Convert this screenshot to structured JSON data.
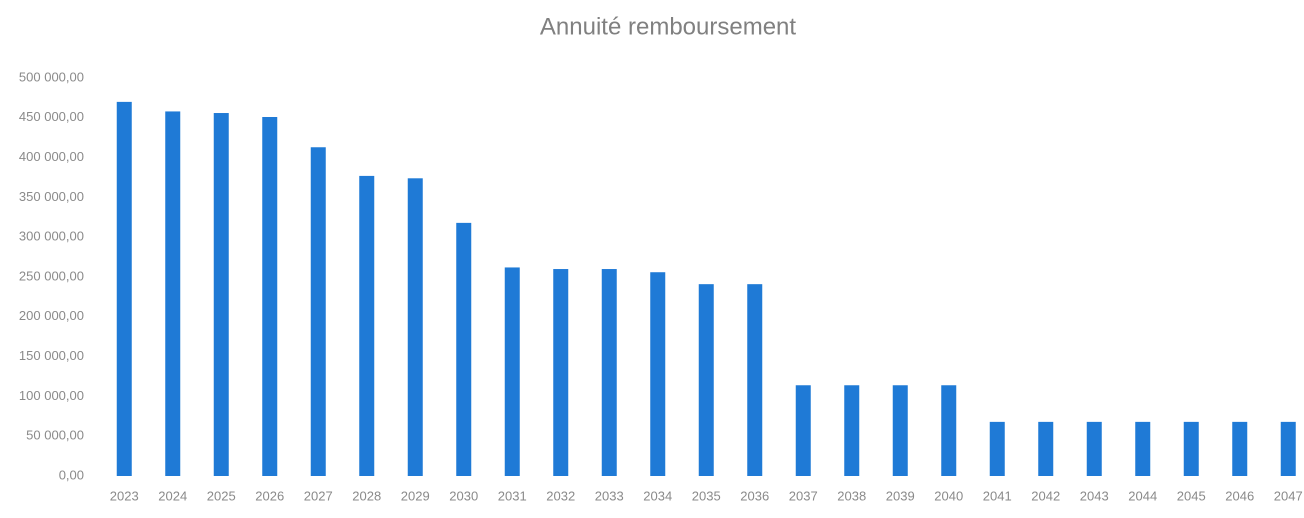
{
  "chart_data": {
    "type": "bar",
    "title": "Annuité remboursement",
    "categories": [
      "2023",
      "2024",
      "2025",
      "2026",
      "2027",
      "2028",
      "2029",
      "2030",
      "2031",
      "2032",
      "2033",
      "2034",
      "2035",
      "2036",
      "2037",
      "2038",
      "2039",
      "2040",
      "2041",
      "2042",
      "2043",
      "2044",
      "2045",
      "2046",
      "2047"
    ],
    "values": [
      470000,
      458000,
      456000,
      451000,
      413000,
      377000,
      374000,
      318000,
      262000,
      260000,
      260000,
      256000,
      241000,
      241000,
      114000,
      114000,
      114000,
      114000,
      68000,
      68000,
      68000,
      68000,
      68000,
      68000,
      68000
    ],
    "color": "#1f7ad6",
    "ylim": [
      0,
      500000
    ],
    "yticks": [
      {
        "value": 0,
        "label": "0,00"
      },
      {
        "value": 50000,
        "label": "50 000,00"
      },
      {
        "value": 100000,
        "label": "100 000,00"
      },
      {
        "value": 150000,
        "label": "150 000,00"
      },
      {
        "value": 200000,
        "label": "200 000,00"
      },
      {
        "value": 250000,
        "label": "250 000,00"
      },
      {
        "value": 300000,
        "label": "300 000,00"
      },
      {
        "value": 350000,
        "label": "350 000,00"
      },
      {
        "value": 400000,
        "label": "400 000,00"
      },
      {
        "value": 450000,
        "label": "450 000,00"
      },
      {
        "value": 500000,
        "label": "500 000,00"
      }
    ],
    "grid": false
  }
}
